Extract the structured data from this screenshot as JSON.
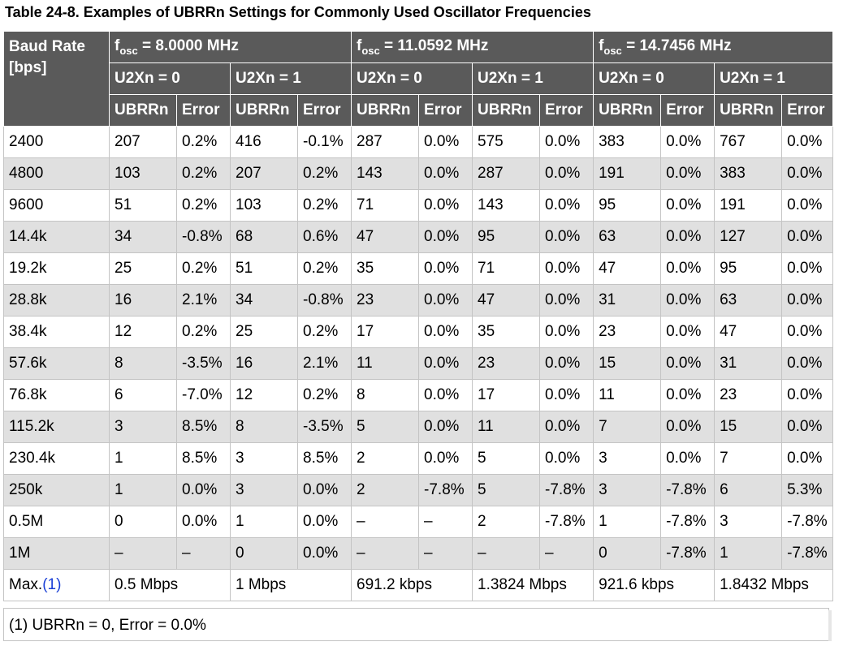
{
  "title": "Table 24-8.  Examples of UBRRn Settings for Commonly Used Oscillator Frequencies",
  "header": {
    "baud_rate": "Baud Rate",
    "baud_unit": "[bps]",
    "osc": [
      {
        "prefix": "f",
        "sub": "osc",
        "value": " = 8.0000 MHz"
      },
      {
        "prefix": "f",
        "sub": "osc",
        "value": " = 11.0592 MHz"
      },
      {
        "prefix": "f",
        "sub": "osc",
        "value": " = 14.7456 MHz"
      }
    ],
    "u2x": [
      "U2Xn = 0",
      "U2Xn = 1",
      "U2Xn = 0",
      "U2Xn = 1",
      "U2Xn = 0",
      "U2Xn = 1"
    ],
    "ubrr_label": "UBRRn",
    "error_label": "Error"
  },
  "rows": [
    [
      "2400",
      "207",
      "0.2%",
      "416",
      "-0.1%",
      "287",
      "0.0%",
      "575",
      "0.0%",
      "383",
      "0.0%",
      "767",
      "0.0%"
    ],
    [
      "4800",
      "103",
      "0.2%",
      "207",
      "0.2%",
      "143",
      "0.0%",
      "287",
      "0.0%",
      "191",
      "0.0%",
      "383",
      "0.0%"
    ],
    [
      "9600",
      "51",
      "0.2%",
      "103",
      "0.2%",
      "71",
      "0.0%",
      "143",
      "0.0%",
      "95",
      "0.0%",
      "191",
      "0.0%"
    ],
    [
      "14.4k",
      "34",
      "-0.8%",
      "68",
      "0.6%",
      "47",
      "0.0%",
      "95",
      "0.0%",
      "63",
      "0.0%",
      "127",
      "0.0%"
    ],
    [
      "19.2k",
      "25",
      "0.2%",
      "51",
      "0.2%",
      "35",
      "0.0%",
      "71",
      "0.0%",
      "47",
      "0.0%",
      "95",
      "0.0%"
    ],
    [
      "28.8k",
      "16",
      "2.1%",
      "34",
      "-0.8%",
      "23",
      "0.0%",
      "47",
      "0.0%",
      "31",
      "0.0%",
      "63",
      "0.0%"
    ],
    [
      "38.4k",
      "12",
      "0.2%",
      "25",
      "0.2%",
      "17",
      "0.0%",
      "35",
      "0.0%",
      "23",
      "0.0%",
      "47",
      "0.0%"
    ],
    [
      "57.6k",
      "8",
      "-3.5%",
      "16",
      "2.1%",
      "11",
      "0.0%",
      "23",
      "0.0%",
      "15",
      "0.0%",
      "31",
      "0.0%"
    ],
    [
      "76.8k",
      "6",
      "-7.0%",
      "12",
      "0.2%",
      "8",
      "0.0%",
      "17",
      "0.0%",
      "11",
      "0.0%",
      "23",
      "0.0%"
    ],
    [
      "115.2k",
      "3",
      "8.5%",
      "8",
      "-3.5%",
      "5",
      "0.0%",
      "11",
      "0.0%",
      "7",
      "0.0%",
      "15",
      "0.0%"
    ],
    [
      "230.4k",
      "1",
      "8.5%",
      "3",
      "8.5%",
      "2",
      "0.0%",
      "5",
      "0.0%",
      "3",
      "0.0%",
      "7",
      "0.0%"
    ],
    [
      "250k",
      "1",
      "0.0%",
      "3",
      "0.0%",
      "2",
      "-7.8%",
      "5",
      "-7.8%",
      "3",
      "-7.8%",
      "6",
      "5.3%"
    ],
    [
      "0.5M",
      "0",
      "0.0%",
      "1",
      "0.0%",
      "–",
      "–",
      "2",
      "-7.8%",
      "1",
      "-7.8%",
      "3",
      "-7.8%"
    ],
    [
      "1M",
      "–",
      "–",
      "0",
      "0.0%",
      "–",
      "–",
      "–",
      "–",
      "0",
      "-7.8%",
      "1",
      "-7.8%"
    ]
  ],
  "max_row": {
    "label": "Max.",
    "footnote_ref": "(1)",
    "values": [
      "0.5 Mbps",
      "1 Mbps",
      "691.2 kbps",
      "1.3824 Mbps",
      "921.6 kbps",
      "1.8432 Mbps"
    ]
  },
  "footnote": "(1) UBRRn = 0, Error = 0.0%"
}
